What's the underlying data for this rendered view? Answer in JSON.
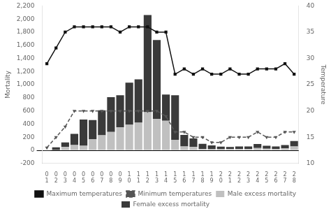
{
  "chart_data": {
    "type": "bar",
    "stacked": true,
    "categories": [
      "0\n1",
      "0\n2",
      "0\n3",
      "0\n4",
      "0\n5",
      "0\n6",
      "0\n7",
      "0\n8",
      "0\n9",
      "1\n0",
      "1\n1",
      "1\n2",
      "1\n3",
      "1\n4",
      "1\n5",
      "1\n6",
      "1\n7",
      "1\n8",
      "1\n9",
      "2\n0",
      "2\n1",
      "2\n2",
      "2\n3",
      "2\n4",
      "2\n5",
      "2\n6",
      "2\n7",
      "2\n8"
    ],
    "ylabel": "Mortality",
    "y2label": "Temperature",
    "ylim": [
      -200,
      2200
    ],
    "yticks": [
      -200,
      0,
      200,
      400,
      600,
      800,
      1000,
      1200,
      1400,
      1600,
      1800,
      2000,
      2200
    ],
    "y2lim": [
      10,
      40
    ],
    "y2ticks": [
      10,
      15,
      20,
      25,
      30,
      35,
      40
    ],
    "grid": false,
    "legend": "bottom",
    "series": [
      {
        "name": "Male excess mortality",
        "type": "bar",
        "color": "#c0c0c0",
        "values": [
          -5,
          5,
          50,
          80,
          70,
          170,
          230,
          280,
          350,
          390,
          420,
          580,
          480,
          450,
          160,
          60,
          50,
          20,
          15,
          15,
          20,
          20,
          20,
          35,
          25,
          20,
          30,
          60
        ]
      },
      {
        "name": "Female excess mortality",
        "type": "bar",
        "color": "#3a3a3a",
        "values": [
          -5,
          40,
          70,
          170,
          400,
          290,
          380,
          530,
          490,
          640,
          660,
          1480,
          1200,
          400,
          680,
          175,
          130,
          80,
          60,
          40,
          30,
          40,
          40,
          60,
          45,
          40,
          50,
          80
        ]
      },
      {
        "name": "Maximum temperatures",
        "type": "line",
        "axis": "y2",
        "color": "#111111",
        "marker": "square",
        "line_style": "solid",
        "values": [
          29,
          32,
          35,
          36,
          36,
          36,
          36,
          36,
          35,
          36,
          36,
          36,
          35,
          35,
          27,
          28,
          27,
          28,
          27,
          27,
          28,
          27,
          27,
          28,
          28,
          28,
          29,
          27
        ]
      },
      {
        "name": "Minimum temperatures",
        "type": "line",
        "axis": "y2",
        "color": "#555555",
        "marker": "triangle_down",
        "line_style": "dashed",
        "values": [
          13,
          15,
          17,
          20,
          20,
          20,
          20,
          20,
          20,
          20,
          20,
          20,
          20,
          19,
          16,
          16,
          15,
          15,
          14,
          14,
          15,
          15,
          15,
          16,
          15,
          15,
          16,
          16
        ]
      }
    ]
  }
}
